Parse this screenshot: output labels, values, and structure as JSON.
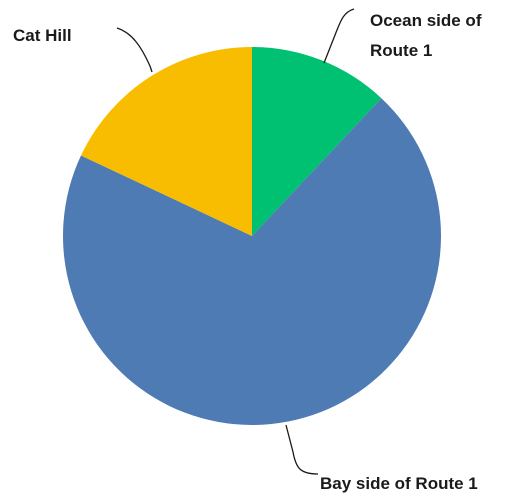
{
  "chart_data": {
    "type": "pie",
    "title": "",
    "categories": [
      "Ocean side of Route 1",
      "Bay side of Route 1",
      "Cat Hill"
    ],
    "values": [
      12,
      70,
      18
    ],
    "colors": [
      "#00c072",
      "#4e7bb4",
      "#f8bc00"
    ],
    "start_angle_deg": 0,
    "direction": "clockwise",
    "legend": "none",
    "labels": [
      {
        "lines": [
          "Ocean side of",
          "Route 1"
        ]
      },
      {
        "lines": [
          "Bay side of Route 1"
        ]
      },
      {
        "lines": [
          "Cat Hill"
        ]
      }
    ]
  }
}
